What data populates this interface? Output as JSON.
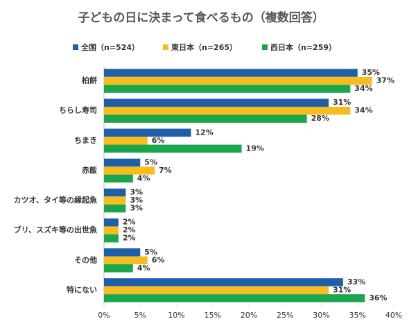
{
  "chart_data": {
    "type": "barh",
    "title": "子どもの日に決まって食べるもの（複数回答）",
    "categories": [
      "柏餅",
      "ちらし寿司",
      "ちまき",
      "赤飯",
      "カツオ、タイ等の縁起魚",
      "ブリ、スズキ等の出世魚",
      "その他",
      "特にない"
    ],
    "series": [
      {
        "name": "全国（n=524）",
        "color": "#1f5ea8",
        "values": [
          35,
          31,
          12,
          5,
          3,
          2,
          5,
          33
        ],
        "value_labels": [
          "35%",
          "31%",
          "12%",
          "5%",
          "3%",
          "2%",
          "5%",
          "33%"
        ]
      },
      {
        "name": "東日本（n=265）",
        "color": "#f5bd1f",
        "values": [
          37,
          34,
          6,
          7,
          3,
          2,
          6,
          31
        ],
        "value_labels": [
          "37%",
          "34%",
          "6%",
          "7%",
          "3%",
          "2%",
          "6%",
          "31%"
        ]
      },
      {
        "name": "西日本（n=259）",
        "color": "#1ba64b",
        "values": [
          34,
          28,
          19,
          4,
          3,
          2,
          4,
          36
        ],
        "value_labels": [
          "34%",
          "28%",
          "19%",
          "4%",
          "3%",
          "2%",
          "4%",
          "36%"
        ]
      }
    ],
    "xlim": [
      0,
      40
    ],
    "xticks": [
      {
        "value": 0,
        "label": "0%"
      },
      {
        "value": 5,
        "label": "5%"
      },
      {
        "value": 10,
        "label": "10%"
      },
      {
        "value": 15,
        "label": "15%"
      },
      {
        "value": 20,
        "label": "20%"
      },
      {
        "value": 25,
        "label": "25%"
      },
      {
        "value": 30,
        "label": "30%"
      },
      {
        "value": 35,
        "label": "35%"
      },
      {
        "value": 40,
        "label": "40%"
      }
    ],
    "grid": false,
    "legend": "top"
  }
}
